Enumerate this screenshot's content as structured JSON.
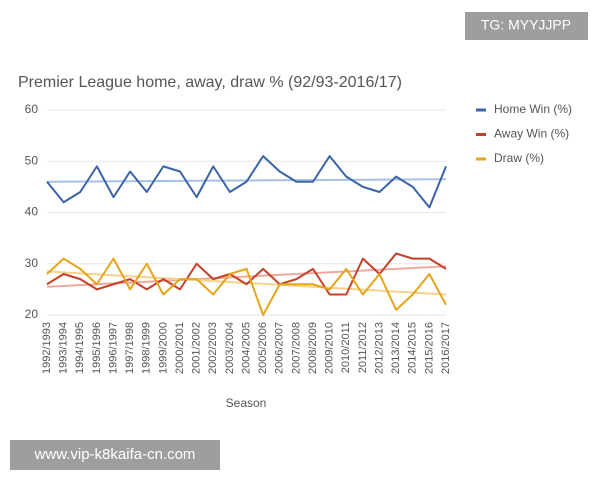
{
  "chart_data": {
    "type": "line",
    "title": "Premier League home, away, draw % (92/93-2016/17)",
    "x_label": "Season",
    "categories": [
      "1992/1993",
      "1993/1994",
      "1994/1995",
      "1995/1996",
      "1996/1997",
      "1997/1998",
      "1998/1999",
      "1999/2000",
      "2000/2001",
      "2001/2002",
      "2002/2003",
      "2003/2004",
      "2004/2005",
      "2005/2006",
      "2006/2007",
      "2007/2008",
      "2008/2009",
      "2009/2010",
      "2010/2011",
      "2011/2012",
      "2012/2013",
      "2013/2014",
      "2014/2015",
      "2015/2016",
      "2016/2017"
    ],
    "series": [
      {
        "name": "Home Win (%)",
        "color": "#3a63a8",
        "values": [
          46,
          42,
          44,
          49,
          43,
          48,
          44,
          49,
          48,
          43,
          49,
          44,
          46,
          51,
          48,
          46,
          46,
          51,
          47,
          45,
          44,
          47,
          45,
          41,
          49
        ]
      },
      {
        "name": "Away Win (%)",
        "color": "#c4402a",
        "values": [
          26,
          28,
          27,
          25,
          26,
          27,
          25,
          27,
          25,
          30,
          27,
          28,
          26,
          29,
          26,
          27,
          29,
          24,
          24,
          31,
          28,
          32,
          31,
          31,
          29
        ]
      },
      {
        "name": "Draw (%)",
        "color": "#e5a51b",
        "values": [
          28,
          31,
          29,
          26,
          31,
          25,
          30,
          24,
          27,
          27,
          24,
          28,
          29,
          20,
          26,
          26,
          26,
          25,
          29,
          24,
          28,
          21,
          24,
          28,
          22
        ]
      }
    ],
    "trendlines": [
      {
        "color": "#a9c0e6",
        "values": [
          46,
          46.5
        ]
      },
      {
        "color": "#eea99c",
        "values": [
          25.5,
          29.5
        ]
      },
      {
        "color": "#f1d38c",
        "values": [
          28.5,
          24
        ]
      }
    ],
    "ylim": [
      20,
      60
    ],
    "yticks": [
      20,
      30,
      40,
      50,
      60
    ],
    "grid": true,
    "legend": "right"
  },
  "watermarks": {
    "top": "TG: MYYJJPP",
    "bottom": "www.vip-k8kaifa-cn.com"
  }
}
